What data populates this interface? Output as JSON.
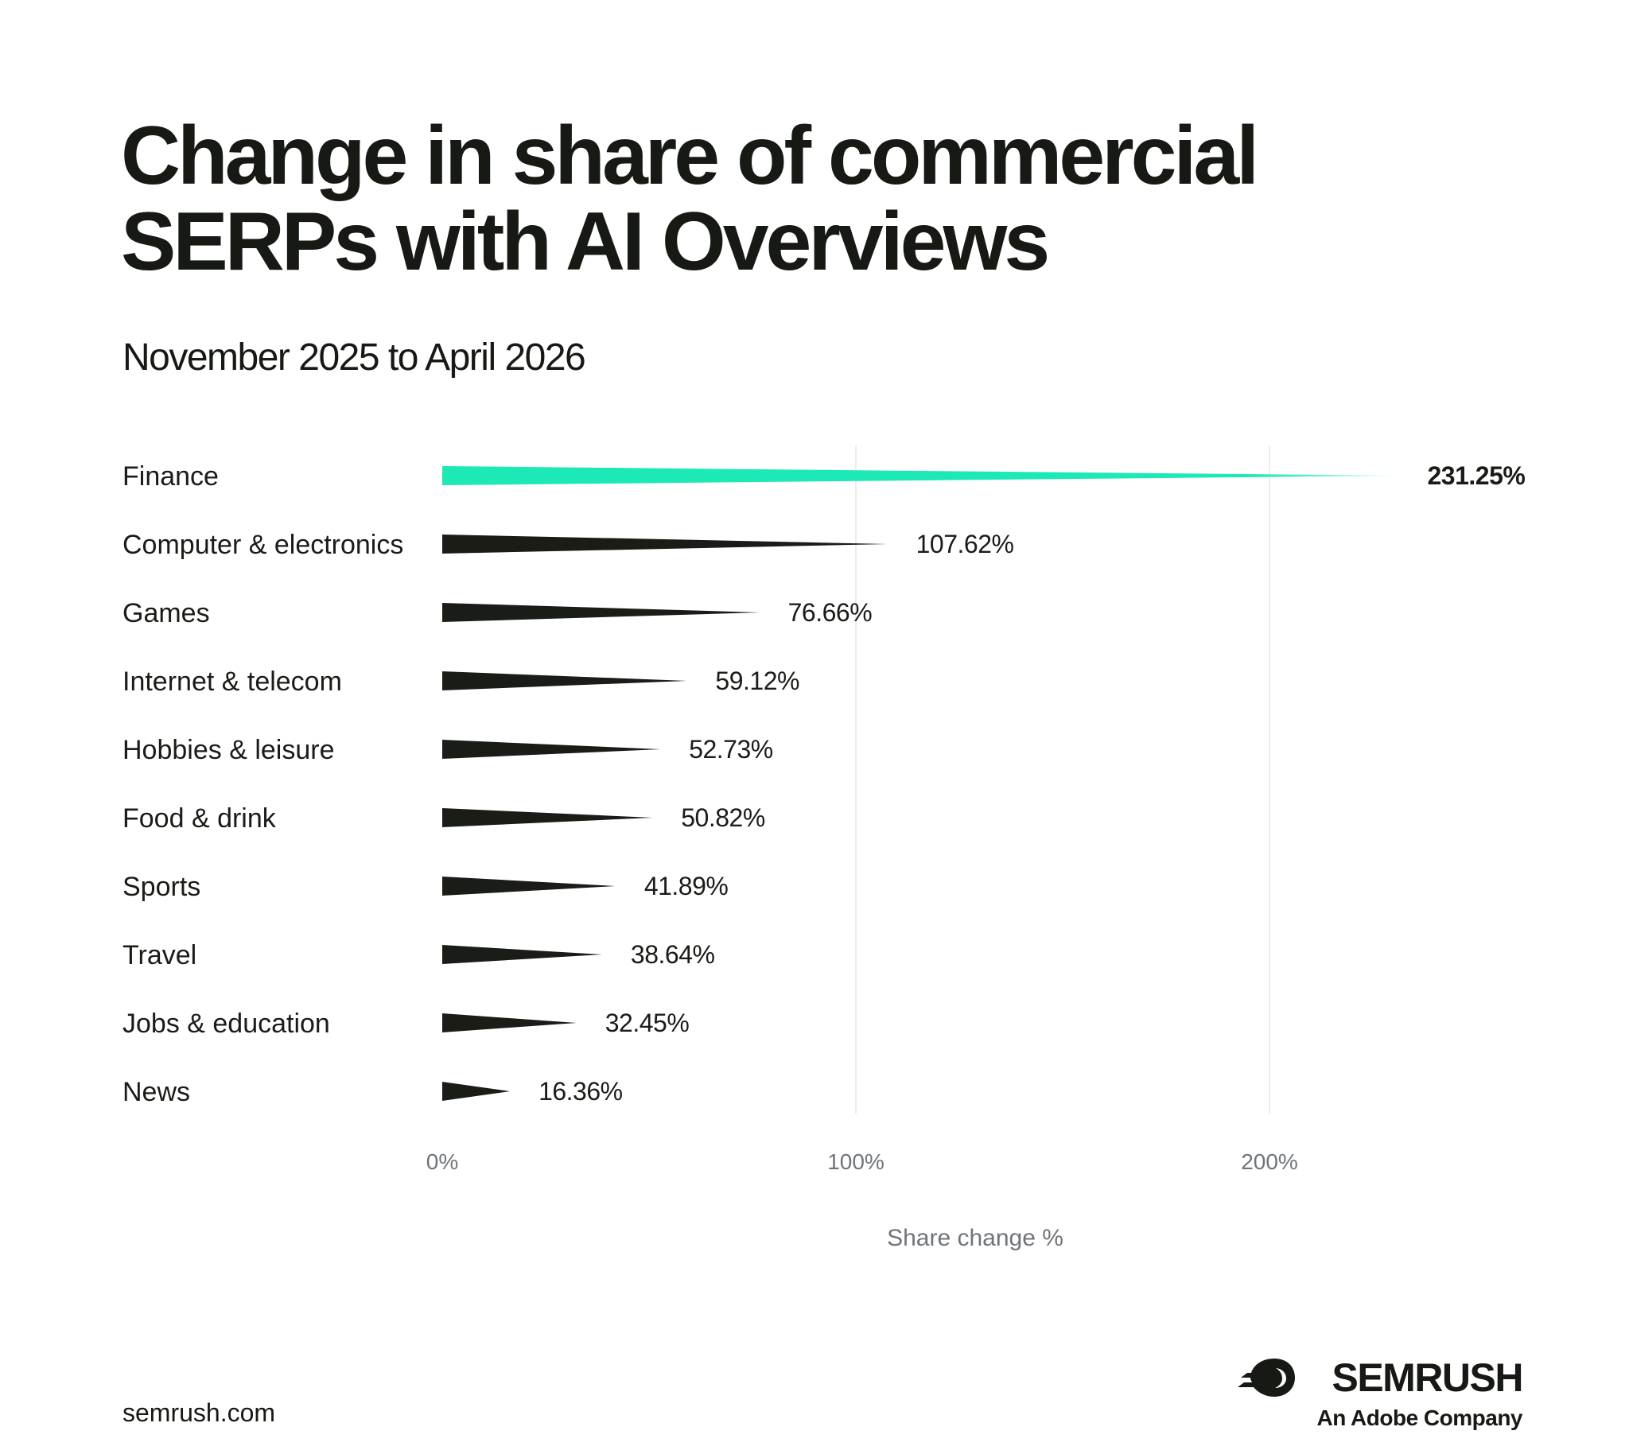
{
  "chart_data": {
    "type": "bar",
    "title": "Change in share of commercial SERPs with AI Overviews",
    "subtitle": "November 2025 to April 2026",
    "orientation": "horizontal",
    "categories": [
      "Finance",
      "Computer & electronics",
      "Games",
      "Internet & telecom",
      "Hobbies & leisure",
      "Food & drink",
      "Sports",
      "Travel",
      "Jobs & education",
      "News"
    ],
    "values": [
      231.25,
      107.62,
      76.66,
      59.12,
      52.73,
      50.82,
      41.89,
      38.64,
      32.45,
      16.36
    ],
    "value_labels": [
      "231.25%",
      "107.62%",
      "76.66%",
      "59.12%",
      "52.73%",
      "50.82%",
      "41.89%",
      "38.64%",
      "32.45%",
      "16.36%"
    ],
    "xlabel": "Share change %",
    "ylabel": "",
    "xlim": [
      0,
      260
    ],
    "xticks": [
      0,
      100,
      200
    ],
    "xtick_labels": [
      "0%",
      "100%",
      "200%"
    ],
    "grid": "vertical",
    "highlight_index": 0,
    "colors": {
      "highlight": "#1de9b6",
      "default": "#1a1c17",
      "grid": "#ececec",
      "tick_text": "#707478"
    }
  },
  "footer": {
    "url": "semrush.com",
    "brand_name": "SEMRUSH",
    "brand_tagline": "An Adobe Company",
    "brand_icon": "semrush-fireball-icon"
  }
}
